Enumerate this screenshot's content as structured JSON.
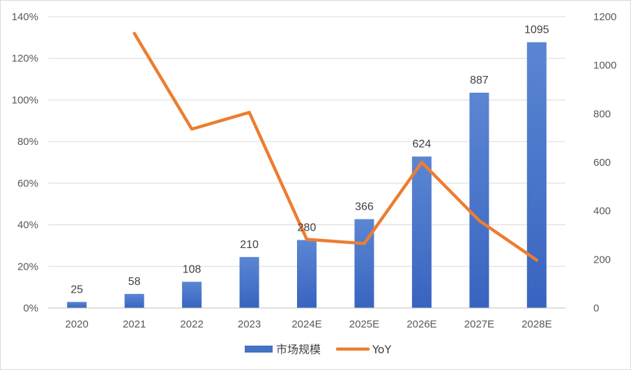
{
  "chart_data": {
    "type": "bar+line",
    "categories": [
      "2020",
      "2021",
      "2022",
      "2023",
      "2024E",
      "2025E",
      "2026E",
      "2027E",
      "2028E"
    ],
    "series": [
      {
        "name": "市场规模",
        "type": "bar",
        "axis": "right",
        "values": [
          25,
          58,
          108,
          210,
          280,
          366,
          624,
          887,
          1095
        ],
        "data_labels": [
          "25",
          "58",
          "108",
          "210",
          "280",
          "366",
          "624",
          "887",
          "1095"
        ],
        "color": "#4472C4"
      },
      {
        "name": "YoY",
        "type": "line",
        "axis": "left",
        "values": [
          null,
          1.32,
          0.86,
          0.94,
          0.33,
          0.31,
          0.7,
          0.42,
          0.23
        ],
        "color": "#ED7D31"
      }
    ],
    "left_axis": {
      "ylim": [
        0,
        1.4
      ],
      "ticks": [
        0,
        0.2,
        0.4,
        0.6,
        0.8,
        1.0,
        1.2,
        1.4
      ],
      "tick_labels": [
        "0%",
        "20%",
        "40%",
        "60%",
        "80%",
        "100%",
        "120%",
        "140%"
      ]
    },
    "right_axis": {
      "ylim": [
        0,
        1200
      ],
      "ticks": [
        0,
        200,
        400,
        600,
        800,
        1000,
        1200
      ],
      "tick_labels": [
        "0",
        "200",
        "400",
        "600",
        "800",
        "1000",
        "1200"
      ]
    },
    "grid": true,
    "legend": "bottom",
    "title": "",
    "xlabel": "",
    "ylabel": ""
  }
}
